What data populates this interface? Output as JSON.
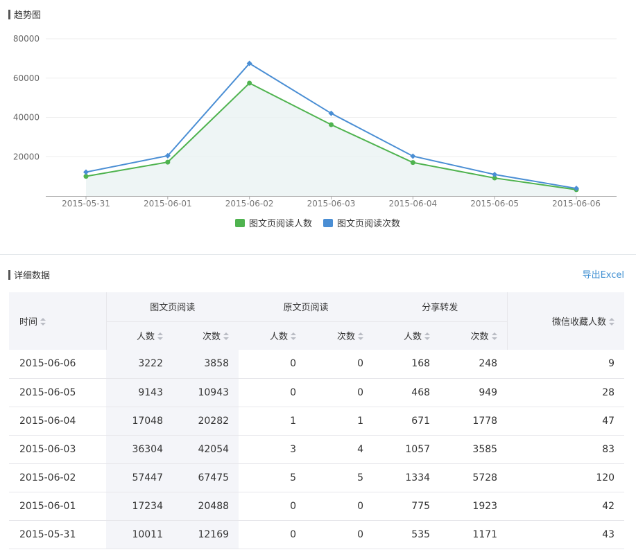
{
  "trend": {
    "title": "趋势图"
  },
  "chart_data": {
    "type": "line",
    "categories": [
      "2015-05-31",
      "2015-06-01",
      "2015-06-02",
      "2015-06-03",
      "2015-06-04",
      "2015-06-05",
      "2015-06-06"
    ],
    "series": [
      {
        "name": "图文页阅读人数",
        "values": [
          10011,
          17234,
          57447,
          36304,
          17048,
          9143,
          3222
        ],
        "color": "#4fb34f"
      },
      {
        "name": "图文页阅读次数",
        "values": [
          12169,
          20488,
          67475,
          42054,
          20282,
          10943,
          3858
        ],
        "color": "#4a8ed4"
      }
    ],
    "yticks": [
      20000,
      40000,
      60000,
      80000
    ],
    "ylim": [
      0,
      80000
    ],
    "grid": true,
    "legend": "bottom-center"
  },
  "detail": {
    "title": "详细数据",
    "export_label": "导出Excel",
    "headers": {
      "time": "时间",
      "group_article": "图文页阅读",
      "group_original": "原文页阅读",
      "group_share": "分享转发",
      "favorites": "微信收藏人数",
      "people": "人数",
      "times": "次数"
    },
    "rows": [
      [
        "2015-06-06",
        "3222",
        "3858",
        "0",
        "0",
        "168",
        "248",
        "9"
      ],
      [
        "2015-06-05",
        "9143",
        "10943",
        "0",
        "0",
        "468",
        "949",
        "28"
      ],
      [
        "2015-06-04",
        "17048",
        "20282",
        "1",
        "1",
        "671",
        "1778",
        "47"
      ],
      [
        "2015-06-03",
        "36304",
        "42054",
        "3",
        "4",
        "1057",
        "3585",
        "83"
      ],
      [
        "2015-06-02",
        "57447",
        "67475",
        "5",
        "5",
        "1334",
        "5728",
        "120"
      ],
      [
        "2015-06-01",
        "17234",
        "20488",
        "0",
        "0",
        "775",
        "1923",
        "42"
      ],
      [
        "2015-05-31",
        "10011",
        "12169",
        "0",
        "0",
        "535",
        "1171",
        "43"
      ]
    ]
  }
}
